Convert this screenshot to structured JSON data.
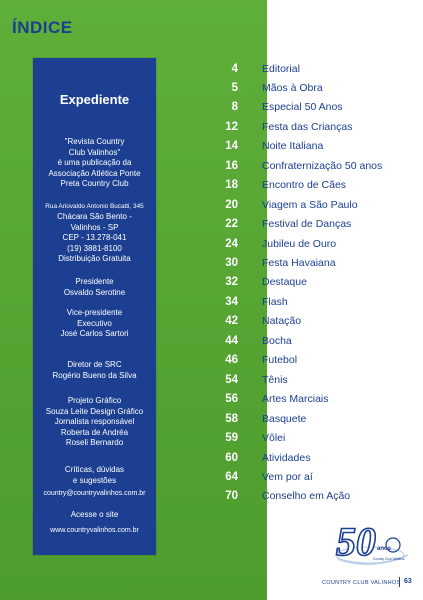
{
  "page_title": "ÍNDICE",
  "expediente": {
    "title": "Expediente",
    "blocks": [
      {
        "size": "s8",
        "lines": [
          "\"Revista Country",
          "Club Valinhos\"",
          "é uma publicação da",
          "Associação Atlética Ponte",
          "Preta Country Club"
        ]
      },
      {
        "size": "s6",
        "lines": [
          "Rua Ariovaldo Antonio Bucatti, 345"
        ]
      },
      {
        "size": "s8",
        "lines": [
          "Chácara São Bento -",
          "Valinhos - SP",
          "CEP - 13.278-041",
          "(19) 3881-8100",
          "Distribuição Gratuita"
        ]
      },
      {
        "size": "s8",
        "lines": [
          "Presidente",
          "Osvaldo Serotine"
        ]
      },
      {
        "size": "s8",
        "lines": [
          "Vice-presidente",
          "Executivo",
          "José Carlos Sartori"
        ]
      },
      {
        "size": "s8",
        "lines": [
          "Diretor de SRC",
          "Rogério Bueno da Silva"
        ]
      },
      {
        "size": "s8",
        "lines": [
          "Projeto Gráfico",
          "Souza Leite Design Gráfico",
          "Jornalista responsável",
          "Roberta de Andréa",
          "Roseli Bernardo"
        ]
      },
      {
        "size": "s8",
        "lines": [
          "Críticas, dúvidas",
          "e sugestões"
        ]
      },
      {
        "size": "s7",
        "lines": [
          "country@countryvalinhos.com.br"
        ]
      },
      {
        "size": "s8",
        "lines": [
          "Acesse o site"
        ]
      },
      {
        "size": "s7",
        "lines": [
          "www.countryvalinhos.com.br"
        ]
      }
    ]
  },
  "toc": [
    {
      "page": "4",
      "title": "Editorial"
    },
    {
      "page": "5",
      "title": "Mãos à Obra"
    },
    {
      "page": "8",
      "title": "Especial 50 Anos"
    },
    {
      "page": "12",
      "title": "Festa das Crianças"
    },
    {
      "page": "14",
      "title": "Noite Italiana"
    },
    {
      "page": "16",
      "title": "Confraternização 50 anos"
    },
    {
      "page": "18",
      "title": "Encontro de Cães"
    },
    {
      "page": "20",
      "title": "Viagem a São Paulo"
    },
    {
      "page": "22",
      "title": "Festival de Danças"
    },
    {
      "page": "24",
      "title": "Jubileu de Ouro"
    },
    {
      "page": "30",
      "title": "Festa Havaiana"
    },
    {
      "page": "32",
      "title": "Destaque"
    },
    {
      "page": "34",
      "title": "Flash"
    },
    {
      "page": "42",
      "title": "Natação"
    },
    {
      "page": "44",
      "title": "Bocha"
    },
    {
      "page": "46",
      "title": "Futebol"
    },
    {
      "page": "54",
      "title": "Tênis"
    },
    {
      "page": "56",
      "title": "Artes Marciais"
    },
    {
      "page": "58",
      "title": "Basquete"
    },
    {
      "page": "59",
      "title": "Vôlei"
    },
    {
      "page": "60",
      "title": "Atividades"
    },
    {
      "page": "64",
      "title": "Vem por aí"
    },
    {
      "page": "70",
      "title": "Conselho em Ação"
    }
  ],
  "logo": {
    "number": "50",
    "word": "anos",
    "caption": "Country Club Valinhos"
  },
  "footer": {
    "publication": "COUNTRY CLUB VALINHOS",
    "page_number": "63"
  },
  "colors": {
    "green": "#5fae3a",
    "navy": "#1c3f92",
    "white": "#ffffff"
  }
}
